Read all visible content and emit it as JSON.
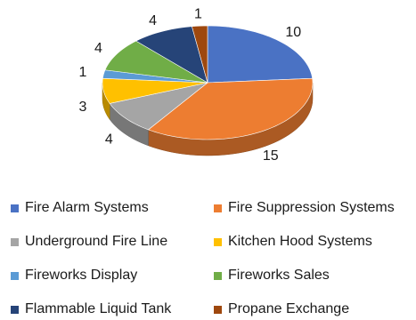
{
  "chart_data": {
    "type": "pie",
    "style": "3d",
    "categories": [
      "Fire Alarm Systems",
      "Fire Suppression Systems",
      "Underground Fire Line",
      "Kitchen Hood Systems",
      "Fireworks Display",
      "Fireworks Sales",
      "Flammable Liquid Tank",
      "Propane Exchange"
    ],
    "values": [
      10,
      15,
      4,
      3,
      1,
      4,
      4,
      1
    ],
    "data_labels": [
      "10",
      "15",
      "4",
      "3",
      "1",
      "4",
      "4",
      "1"
    ],
    "colors": [
      "#4a72c4",
      "#ed7d31",
      "#a5a5a5",
      "#ffc000",
      "#5b9bd5",
      "#70ad47",
      "#264478",
      "#9e480e"
    ],
    "title": "",
    "legend_position": "bottom"
  }
}
